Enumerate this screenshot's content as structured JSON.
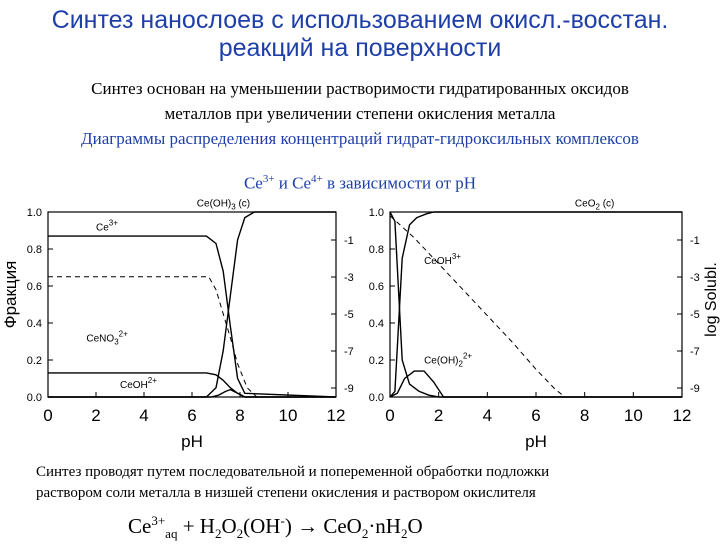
{
  "title": {
    "line1": "Синтез нанослоев с использованием окисл.-восстан.",
    "line2": "реакций на поверхности"
  },
  "intro": {
    "line1": "Синтез основан на уменьшении растворимости гидратированных оксидов",
    "line2": "металлов при увеличении степени окисления металла",
    "line3": "Диаграммы распределения концентраций гидрат-гидроксильных комплексов",
    "line4_pre": "Ce",
    "line4_sup1": "3+",
    "line4_mid": "  и Ce",
    "line4_sup2": "4+",
    "line4_post": " в зависимости от pH"
  },
  "chart_data": [
    {
      "type": "line",
      "xlabel": "pH",
      "ylabel": "Фракция",
      "y2label": "",
      "xlim": [
        0,
        12
      ],
      "ylim": [
        0,
        1
      ],
      "xticks": [
        "0",
        "2",
        "4",
        "6",
        "8",
        "10",
        "12"
      ],
      "yticks": [
        "0.0",
        "0.2",
        "0.4",
        "0.6",
        "0.8",
        "1.0"
      ],
      "y2ticks": [
        "-1",
        "-3",
        "-5",
        "-7",
        "-9"
      ],
      "series": [
        {
          "name": "Ce3+",
          "style": "solid",
          "x": [
            0,
            6.6,
            7.0,
            7.3,
            7.6,
            7.9,
            8.2,
            12
          ],
          "y": [
            0.87,
            0.87,
            0.83,
            0.68,
            0.38,
            0.1,
            0.02,
            0.0
          ]
        },
        {
          "name": "CeNO3 2+",
          "style": "solid",
          "x": [
            0,
            6.6,
            7.0,
            7.3,
            7.6,
            7.9,
            8.2,
            12
          ],
          "y": [
            0.13,
            0.13,
            0.12,
            0.09,
            0.05,
            0.02,
            0.0,
            0.0
          ]
        },
        {
          "name": "CeOH 2+",
          "style": "solid",
          "x": [
            0,
            6.8,
            7.1,
            7.4,
            7.6,
            7.9,
            8.2,
            12
          ],
          "y": [
            0.0,
            0.0,
            0.01,
            0.03,
            0.04,
            0.02,
            0.0,
            0.0
          ]
        },
        {
          "name": "Ce(OH)3 (c)",
          "style": "solid",
          "x": [
            0,
            6.6,
            7.0,
            7.3,
            7.6,
            7.9,
            8.2,
            8.6,
            12
          ],
          "y": [
            0.0,
            0.0,
            0.05,
            0.25,
            0.55,
            0.85,
            0.97,
            1.0,
            1.0
          ]
        },
        {
          "name": "",
          "style": "dashed",
          "x": [
            0,
            6.7,
            7.0,
            7.3,
            7.6,
            7.9,
            8.3,
            8.7,
            9.2,
            12
          ],
          "y": [
            0.65,
            0.65,
            0.58,
            0.45,
            0.32,
            0.18,
            0.05,
            0.0,
            0.0,
            0.0
          ]
        }
      ],
      "labels": [
        {
          "text": "Ce(OH)",
          "sub": "3",
          "post": " (c)",
          "x": 6.2,
          "y": 1.03
        },
        {
          "text": "Ce",
          "sup": "3+",
          "post": "",
          "x": 2.0,
          "y": 0.9
        },
        {
          "text": "CeNO",
          "sub": "3",
          "sup": "2+",
          "post": "",
          "x": 1.6,
          "y": 0.3
        },
        {
          "text": "CeOH",
          "sup": "2+",
          "post": "",
          "x": 3.0,
          "y": 0.05
        }
      ]
    },
    {
      "type": "line",
      "xlabel": "pH",
      "ylabel": "",
      "y2label": "log Solubl.",
      "xlim": [
        0,
        12
      ],
      "ylim": [
        0,
        1
      ],
      "xticks": [
        "0",
        "2",
        "4",
        "6",
        "8",
        "10",
        "12"
      ],
      "yticks": [
        "0.0",
        "0.2",
        "0.4",
        "0.6",
        "0.8",
        "1.0"
      ],
      "y2ticks": [
        "-1",
        "-3",
        "-5",
        "-7",
        "-9"
      ],
      "series": [
        {
          "name": "CeO2 (c)",
          "style": "solid",
          "x": [
            0,
            0.2,
            0.5,
            0.8,
            1.1,
            1.5,
            1.8,
            12
          ],
          "y": [
            0.0,
            0.03,
            0.75,
            0.93,
            0.97,
            0.99,
            1.0,
            1.0
          ]
        },
        {
          "name": "CeOH 3+",
          "style": "solid",
          "x": [
            0,
            0.2,
            0.5,
            0.8,
            1.2,
            1.6,
            2.0,
            12
          ],
          "y": [
            1.0,
            0.95,
            0.2,
            0.07,
            0.03,
            0.01,
            0.0,
            0.0
          ]
        },
        {
          "name": "Ce(OH)2 2+",
          "style": "solid",
          "x": [
            0,
            0.3,
            0.6,
            1.0,
            1.4,
            1.8,
            2.2,
            12
          ],
          "y": [
            0.0,
            0.02,
            0.1,
            0.14,
            0.14,
            0.08,
            0.0,
            0.0
          ]
        },
        {
          "name": "",
          "style": "dashed",
          "x": [
            0,
            1.0,
            2.0,
            3.0,
            4.0,
            5.0,
            6.0,
            6.8,
            7.2,
            12
          ],
          "y": [
            0.98,
            0.86,
            0.72,
            0.58,
            0.44,
            0.3,
            0.15,
            0.04,
            0.0,
            0.0
          ]
        }
      ],
      "labels": [
        {
          "text": "CeO",
          "sub": "2",
          "post": " (c)",
          "x": 7.6,
          "y": 1.03
        },
        {
          "text": "CeOH",
          "sup": "3+",
          "post": "",
          "x": 1.4,
          "y": 0.72
        },
        {
          "text": "Ce(OH)",
          "sub": "2",
          "sup": "2+",
          "post": "",
          "x": 1.4,
          "y": 0.18
        }
      ]
    }
  ],
  "bottom": {
    "line1": "Синтез проводят путем последовательной и попеременной обработки подложки",
    "line2": "раствором соли металла в низшей степени окисления и раствором окислителя"
  },
  "reaction": {
    "ce": "Ce",
    "ce_sup": "3+",
    "aq": "aq",
    "plus_h": " + H",
    "two1": "2",
    "o": "O",
    "two2": "2",
    "oh": "(OH",
    "minus": "-",
    "close": ")  ",
    "arrow": "→",
    "ceo": " CeO",
    "two3": "2",
    "dot": "·nH",
    "two4": "2",
    "o_end": "O"
  }
}
